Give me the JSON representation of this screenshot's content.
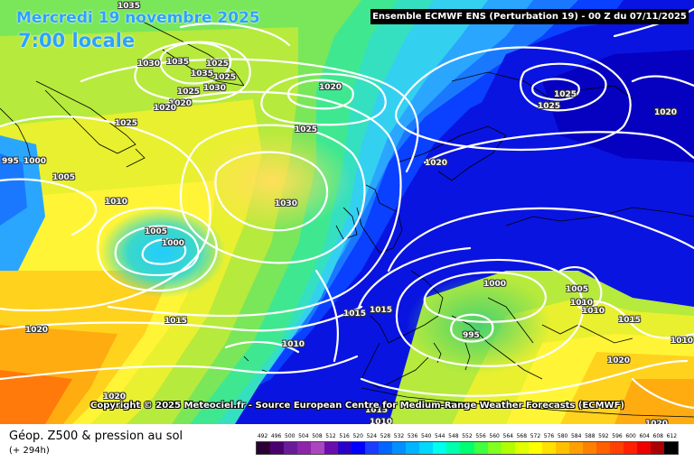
{
  "header": {
    "date": "Mercredi 19 novembre 2025",
    "local_time": "7:00 locale",
    "model_banner": "Ensemble ECMWF ENS  (Perturbation 19)  -  00 Z du 07/11/2025"
  },
  "copyright": "Copyright © 2025 Meteociel.fr - Source European Centre for Medium-Range Weather Forecasts (ECMWF)",
  "footer": {
    "title": "Géop. Z500 & pression au sol",
    "lead_time": "(+ 294h)"
  },
  "legend": {
    "values": [
      "492",
      "496",
      "500",
      "504",
      "508",
      "512",
      "516",
      "520",
      "524",
      "528",
      "532",
      "536",
      "540",
      "544",
      "548",
      "552",
      "556",
      "560",
      "564",
      "568",
      "572",
      "576",
      "580",
      "584",
      "588",
      "592",
      "596",
      "600",
      "604",
      "608",
      "612"
    ],
    "colors": [
      "#2b0033",
      "#4b0070",
      "#6a1b9a",
      "#8e24aa",
      "#ab47bc",
      "#6a0dad",
      "#2a00c8",
      "#0000ff",
      "#1a3cff",
      "#0066ff",
      "#0090ff",
      "#00b4ff",
      "#00d8ff",
      "#00ffee",
      "#00ffb0",
      "#00ff70",
      "#40ff40",
      "#80ff20",
      "#b0ff00",
      "#e0ff00",
      "#ffff00",
      "#ffe000",
      "#ffc000",
      "#ffa000",
      "#ff8000",
      "#ff6000",
      "#ff4000",
      "#ff2000",
      "#ee0000",
      "#aa0000",
      "#000000"
    ]
  },
  "isobar_labels": [
    "1035",
    "1030",
    "1035",
    "1035",
    "1025",
    "1025",
    "1030",
    "1025",
    "1020",
    "1020",
    "1025",
    "1020",
    "1020",
    "1025",
    "1025",
    "1025",
    "1020",
    "995",
    "1000",
    "1005",
    "1010",
    "1030",
    "1005",
    "1000",
    "1015",
    "1020",
    "1010",
    "1015",
    "1015",
    "1000",
    "1005",
    "995",
    "1010",
    "1010",
    "1015",
    "1010",
    "1020",
    "1020",
    "1015",
    "1010",
    "1020"
  ],
  "colors": {
    "title_blue": "#2aa3ff",
    "isobar": "#ffffff",
    "coast": "#000000"
  }
}
